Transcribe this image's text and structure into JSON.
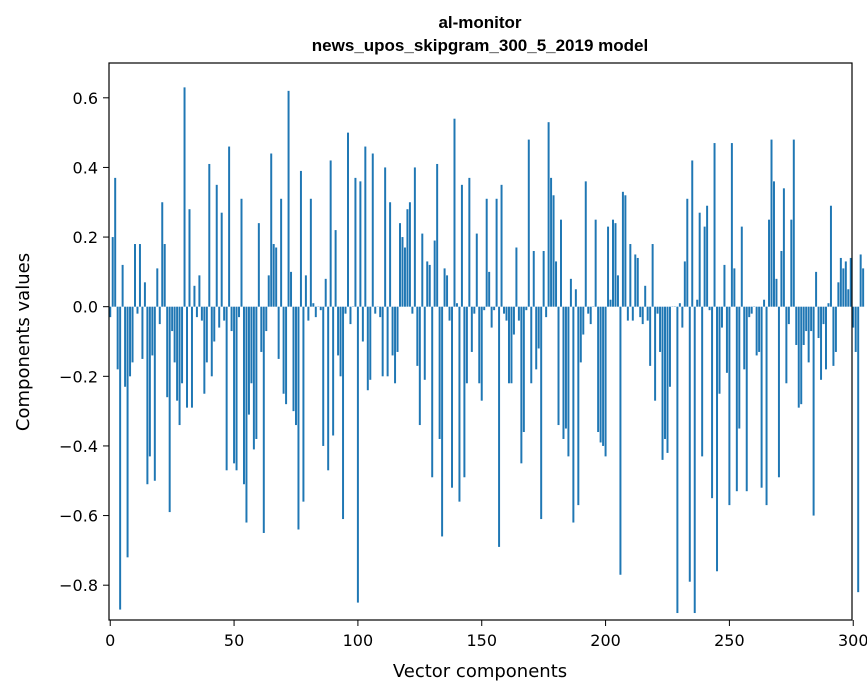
{
  "chart_data": {
    "type": "bar",
    "title": "al-monitor",
    "subtitle": "news_upos_skipgram_300_5_2019 model",
    "xlabel": "Vector components",
    "ylabel": "Components values",
    "xlim": [
      -0.5,
      299.5
    ],
    "ylim": [
      -0.9,
      0.7
    ],
    "xticks": [
      0,
      50,
      100,
      150,
      200,
      250,
      300
    ],
    "yticks": [
      -0.8,
      -0.6,
      -0.4,
      -0.2,
      0.0,
      0.2,
      0.4,
      0.6
    ],
    "ytick_labels": [
      "−0.8",
      "−0.6",
      "−0.4",
      "−0.2",
      "0.0",
      "0.2",
      "0.4",
      "0.6"
    ],
    "bar_color": "#1f77b4",
    "grid": false,
    "series": [
      {
        "name": "components",
        "values": [
          -0.03,
          0.2,
          0.37,
          -0.18,
          -0.87,
          0.12,
          -0.23,
          -0.72,
          -0.2,
          -0.16,
          0.18,
          -0.02,
          0.18,
          -0.15,
          0.07,
          -0.51,
          -0.43,
          -0.14,
          -0.5,
          0.11,
          -0.05,
          0.3,
          0.18,
          -0.26,
          -0.59,
          -0.07,
          -0.16,
          -0.27,
          -0.34,
          -0.22,
          0.63,
          -0.29,
          0.28,
          -0.29,
          0.06,
          -0.03,
          0.09,
          -0.04,
          -0.25,
          -0.16,
          0.41,
          -0.2,
          -0.1,
          0.35,
          -0.06,
          0.27,
          -0.04,
          -0.47,
          0.46,
          -0.07,
          -0.45,
          -0.47,
          -0.03,
          0.31,
          -0.51,
          -0.62,
          -0.31,
          -0.22,
          -0.41,
          -0.38,
          0.24,
          -0.13,
          -0.65,
          -0.07,
          0.09,
          0.44,
          0.18,
          0.17,
          -0.15,
          0.31,
          -0.25,
          -0.28,
          0.62,
          0.1,
          -0.3,
          -0.34,
          -0.64,
          0.39,
          -0.56,
          0.09,
          -0.04,
          0.31,
          0.01,
          -0.03,
          0.0,
          -0.01,
          -0.4,
          0.08,
          -0.47,
          0.42,
          -0.37,
          0.22,
          -0.14,
          -0.2,
          -0.61,
          -0.02,
          0.5,
          -0.05,
          0.0,
          0.37,
          -0.85,
          0.36,
          -0.1,
          0.46,
          -0.24,
          -0.21,
          0.44,
          -0.02,
          0.0,
          -0.03,
          -0.2,
          0.4,
          -0.2,
          0.3,
          -0.14,
          -0.22,
          -0.13,
          0.24,
          0.2,
          0.17,
          0.28,
          0.3,
          -0.02,
          0.4,
          -0.17,
          -0.34,
          0.21,
          -0.21,
          0.13,
          0.12,
          -0.49,
          0.19,
          0.41,
          -0.38,
          -0.66,
          0.11,
          0.09,
          -0.04,
          -0.52,
          0.54,
          0.01,
          -0.56,
          0.35,
          -0.49,
          -0.22,
          0.37,
          -0.13,
          -0.02,
          0.21,
          -0.22,
          -0.27,
          -0.01,
          0.31,
          0.1,
          -0.06,
          -0.01,
          0.31,
          -0.69,
          0.35,
          -0.02,
          -0.04,
          -0.22,
          -0.22,
          -0.08,
          0.17,
          -0.04,
          -0.45,
          -0.36,
          -0.01,
          0.48,
          -0.22,
          0.16,
          -0.18,
          -0.12,
          -0.61,
          0.16,
          -0.03,
          0.53,
          0.37,
          0.32,
          0.13,
          -0.34,
          0.25,
          -0.38,
          -0.35,
          -0.43,
          0.08,
          -0.62,
          0.05,
          -0.57,
          -0.16,
          -0.08,
          0.36,
          -0.02,
          -0.05,
          0.0,
          0.25,
          -0.36,
          -0.39,
          -0.4,
          -0.43,
          0.23,
          0.02,
          0.25,
          0.24,
          0.09,
          -0.77,
          0.33,
          0.32,
          -0.04,
          0.18,
          -0.04,
          0.15,
          0.14,
          -0.03,
          -0.05,
          0.06,
          -0.04,
          -0.17,
          0.18,
          -0.27,
          -0.02,
          -0.13,
          -0.44,
          -0.38,
          -0.42,
          -0.23,
          0.0,
          0.0,
          -0.88,
          0.01,
          -0.06,
          0.13,
          0.31,
          -0.79,
          0.42,
          -0.88,
          0.02,
          0.27,
          -0.43,
          0.23,
          0.29,
          -0.01,
          -0.55,
          0.47,
          -0.76,
          -0.25,
          -0.06,
          0.12,
          -0.19,
          -0.57,
          0.47,
          0.11,
          -0.53,
          -0.35,
          0.23,
          -0.18,
          -0.53,
          -0.03,
          -0.02,
          0.0,
          -0.14,
          -0.13,
          -0.52,
          0.02,
          -0.57,
          0.25,
          0.48,
          0.36,
          0.08,
          -0.49,
          0.16,
          0.34,
          -0.22,
          -0.05,
          0.25,
          0.48,
          -0.11,
          -0.29,
          -0.28,
          -0.11,
          -0.07,
          -0.16,
          -0.07,
          -0.6,
          0.1,
          -0.09,
          -0.21,
          -0.05,
          -0.18,
          0.01,
          0.29,
          -0.17,
          -0.13,
          0.07,
          0.14,
          0.11,
          0.13,
          0.05,
          0.14,
          -0.06,
          -0.13,
          -0.82,
          0.15,
          0.11
        ]
      }
    ]
  }
}
